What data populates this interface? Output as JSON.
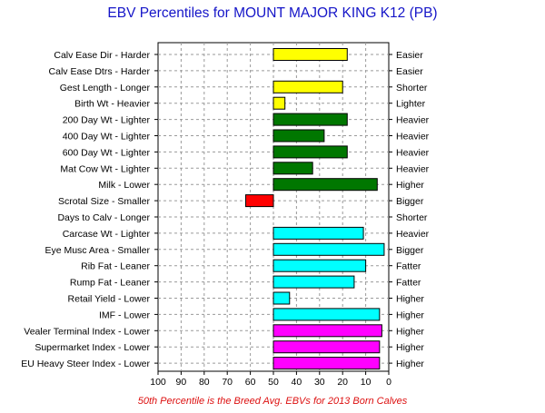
{
  "title": "EBV Percentiles for MOUNT MAJOR KING K12 (PB)",
  "footnote": "50th Percentile is the Breed Avg. EBVs for 2013 Born Calves",
  "chart_data": {
    "type": "bar",
    "orientation": "horizontal",
    "title": "EBV Percentiles for MOUNT MAJOR KING K12 (PB)",
    "xlim": [
      100,
      0
    ],
    "x_ticks": [
      "100",
      "90",
      "80",
      "70",
      "60",
      "50",
      "40",
      "30",
      "20",
      "10",
      "0"
    ],
    "baseline": 50,
    "grid": true,
    "categories": [
      {
        "left": "Calv Ease Dir - Harder",
        "right": "Easier",
        "value": 18,
        "color": "#ffff00"
      },
      {
        "left": "Calv Ease Dtrs - Harder",
        "right": "Easier",
        "value": null,
        "color": "#ffff00"
      },
      {
        "left": "Gest Length - Longer",
        "right": "Shorter",
        "value": 20,
        "color": "#ffff00"
      },
      {
        "left": "Birth Wt - Heavier",
        "right": "Lighter",
        "value": 45,
        "color": "#ffff00"
      },
      {
        "left": "200 Day Wt - Lighter",
        "right": "Heavier",
        "value": 18,
        "color": "#007700"
      },
      {
        "left": "400 Day Wt - Lighter",
        "right": "Heavier",
        "value": 28,
        "color": "#007700"
      },
      {
        "left": "600 Day Wt - Lighter",
        "right": "Heavier",
        "value": 18,
        "color": "#007700"
      },
      {
        "left": "Mat Cow Wt - Lighter",
        "right": "Heavier",
        "value": 33,
        "color": "#007700"
      },
      {
        "left": "Milk - Lower",
        "right": "Higher",
        "value": 5,
        "color": "#007700"
      },
      {
        "left": "Scrotal Size - Smaller",
        "right": "Bigger",
        "value": 62,
        "color": "#ff0000"
      },
      {
        "left": "Days to Calv - Longer",
        "right": "Shorter",
        "value": null,
        "color": "#ff0000"
      },
      {
        "left": "Carcase Wt - Lighter",
        "right": "Heavier",
        "value": 11,
        "color": "#00ffff"
      },
      {
        "left": "Eye Musc Area - Smaller",
        "right": "Bigger",
        "value": 2,
        "color": "#00ffff"
      },
      {
        "left": "Rib Fat - Leaner",
        "right": "Fatter",
        "value": 10,
        "color": "#00ffff"
      },
      {
        "left": "Rump Fat - Leaner",
        "right": "Fatter",
        "value": 15,
        "color": "#00ffff"
      },
      {
        "left": "Retail Yield - Lower",
        "right": "Higher",
        "value": 43,
        "color": "#00ffff"
      },
      {
        "left": "IMF - Lower",
        "right": "Higher",
        "value": 4,
        "color": "#00ffff"
      },
      {
        "left": "Vealer Terminal Index - Lower",
        "right": "Higher",
        "value": 3,
        "color": "#ff00ff"
      },
      {
        "left": "Supermarket Index - Lower",
        "right": "Higher",
        "value": 4,
        "color": "#ff00ff"
      },
      {
        "left": "EU Heavy Steer Index - Lower",
        "right": "Higher",
        "value": 4,
        "color": "#ff00ff"
      }
    ]
  }
}
